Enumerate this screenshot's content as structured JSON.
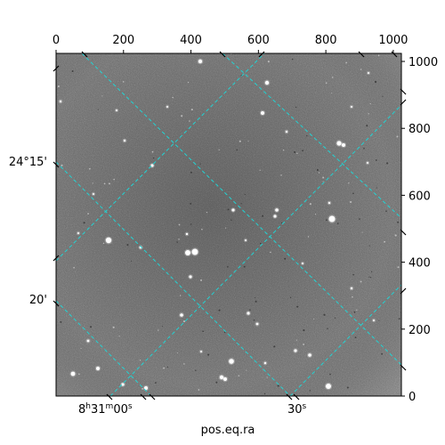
{
  "figure": {
    "x_label": "pos.eq.ra",
    "pixel_axis_x": {
      "range": [
        0,
        1024
      ],
      "ticks": [
        0,
        200,
        400,
        600,
        800,
        1000
      ],
      "labels": [
        "0",
        "200",
        "400",
        "600",
        "800",
        "1000"
      ]
    },
    "pixel_axis_y": {
      "range": [
        0,
        1024
      ],
      "ticks": [
        0,
        200,
        400,
        600,
        800,
        1000
      ],
      "labels": [
        "0",
        "200",
        "400",
        "600",
        "800",
        "1000"
      ]
    },
    "dec_labels": [
      "24°15'",
      "20'"
    ],
    "ra_labels": {
      "first": {
        "base": "8",
        "h": "h",
        "m_val": "31",
        "m": "m",
        "s_val": "00",
        "s": "s"
      },
      "second": {
        "val": "30",
        "s": "s"
      }
    },
    "colors": {
      "grid": "#22d3d3",
      "frame": "#000000",
      "background": "#ffffff"
    }
  }
}
